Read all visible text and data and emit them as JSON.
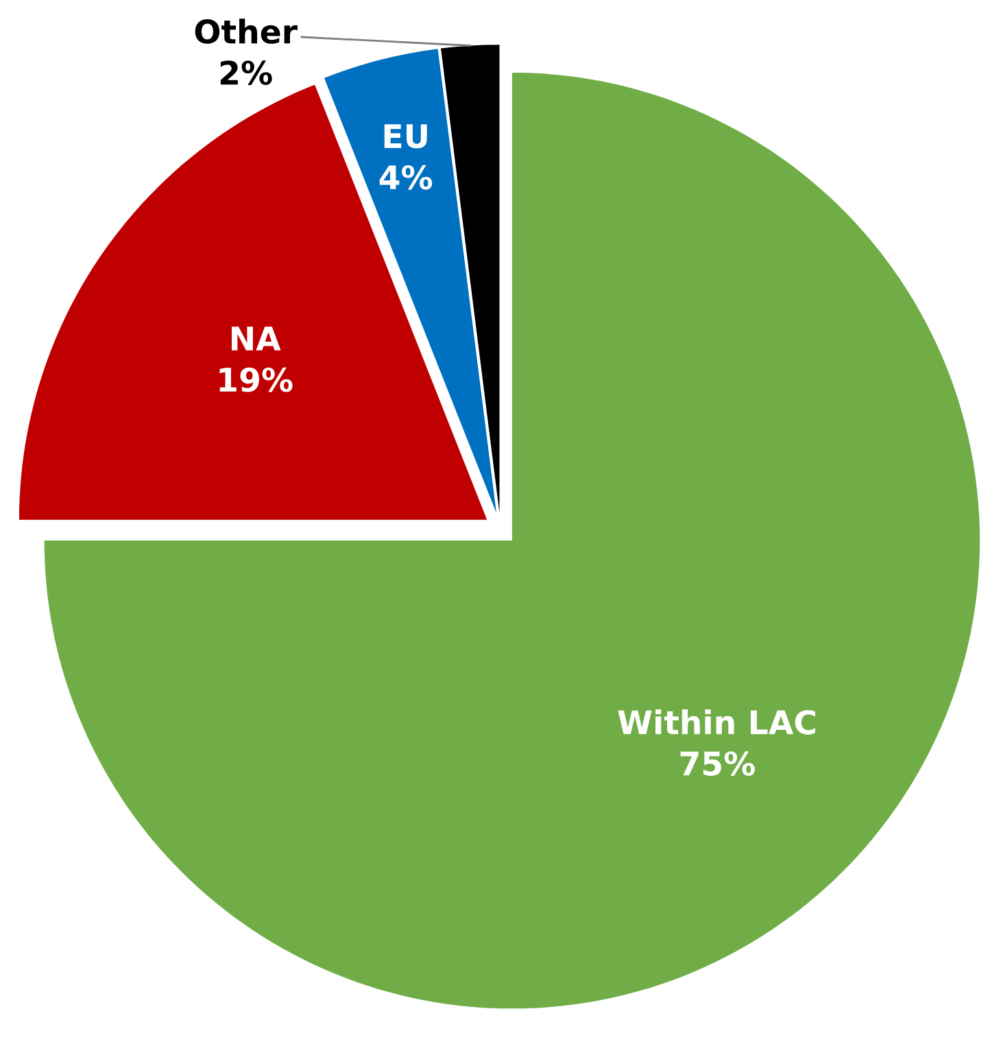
{
  "chart_data": {
    "type": "pie",
    "categories": [
      "Within LAC",
      "NA",
      "EU",
      "Other"
    ],
    "values": [
      75,
      19,
      4,
      2
    ],
    "colors": [
      "#70ad47",
      "#c00000",
      "#0070c0",
      "#000000"
    ],
    "value_labels": [
      "75%",
      "19%",
      "4%",
      "2%"
    ]
  }
}
